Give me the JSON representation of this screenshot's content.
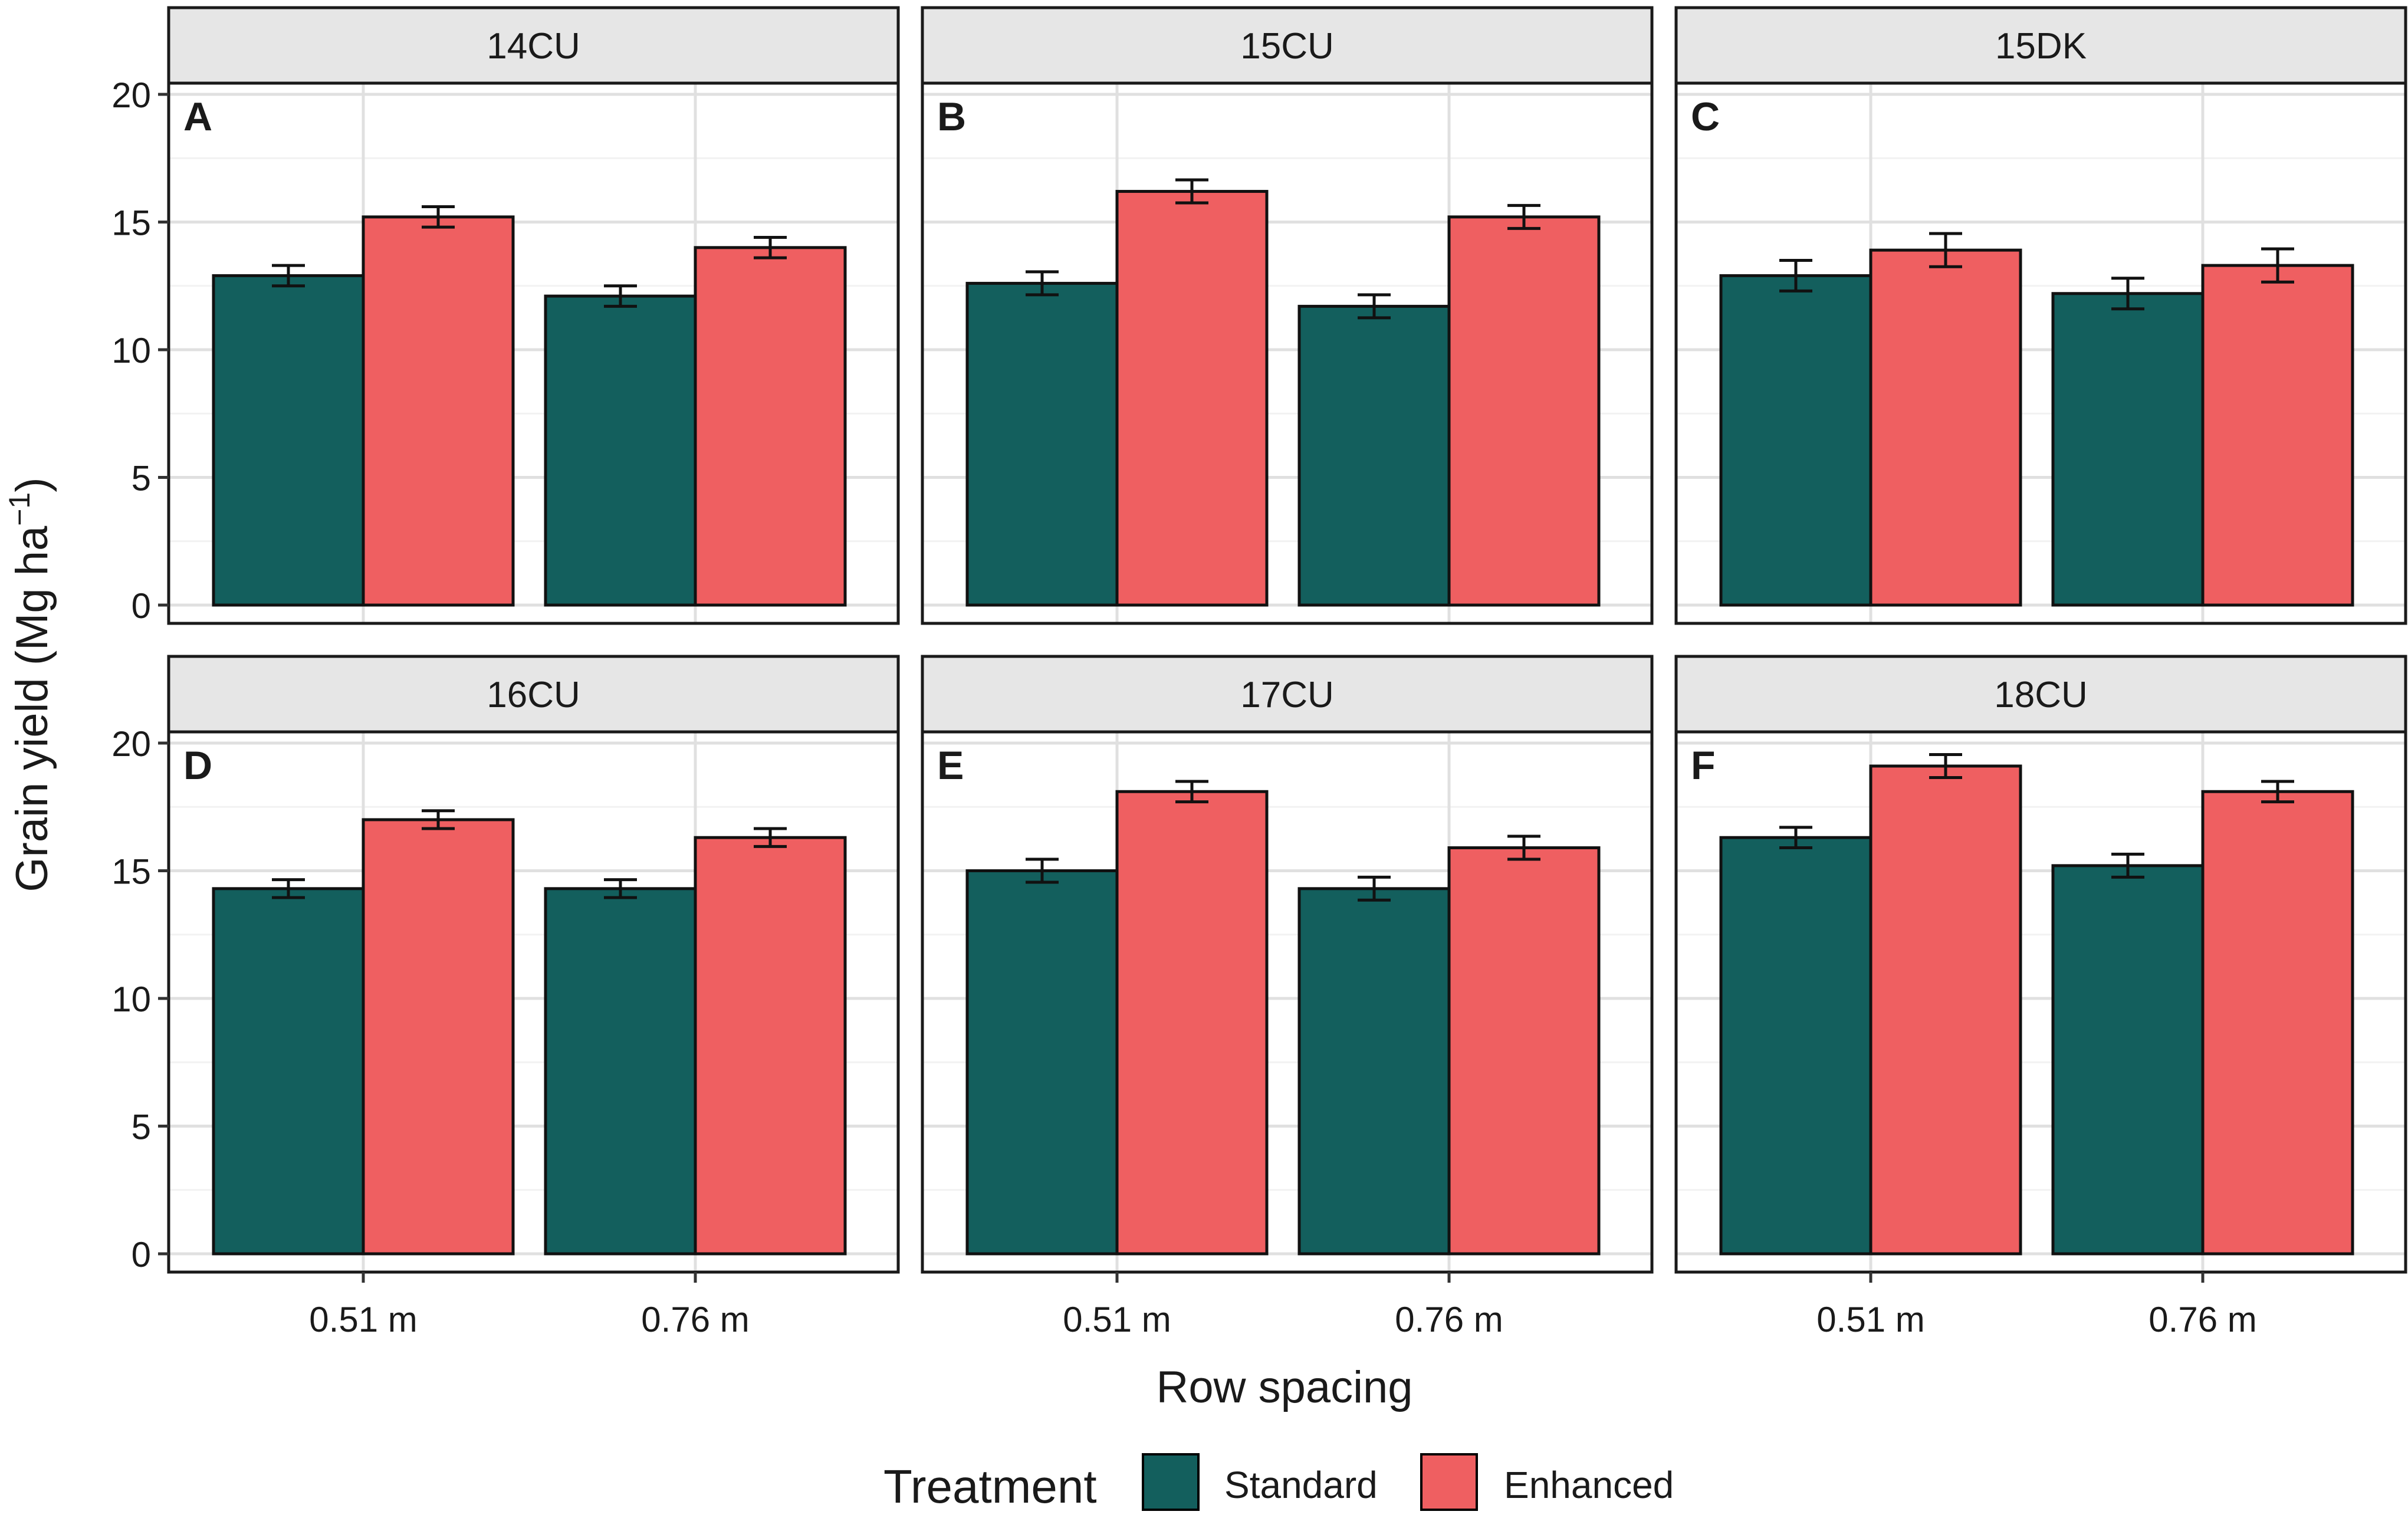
{
  "chart_data": {
    "type": "bar",
    "ylabel": "Grain yield (Mg ha",
    "ylabel_superscript": "−1",
    "ylabel_close": ")",
    "xlabel": "Row spacing",
    "ylim": [
      0,
      20
    ],
    "yticks": [
      0,
      5,
      10,
      15,
      20
    ],
    "categories": [
      "0.51 m",
      "0.76 m"
    ],
    "legend": {
      "title": "Treatment",
      "position": "bottom",
      "items": [
        {
          "name": "Standard",
          "color": "#135f5d"
        },
        {
          "name": "Enhanced",
          "color": "#ef5f61"
        }
      ]
    },
    "panels": [
      {
        "strip": "14CU",
        "tag": "A",
        "series": [
          {
            "name": "Standard",
            "values": [
              12.9,
              12.1
            ],
            "errors": [
              0.4,
              0.4
            ]
          },
          {
            "name": "Enhanced",
            "values": [
              15.2,
              14.0
            ],
            "errors": [
              0.4,
              0.4
            ]
          }
        ]
      },
      {
        "strip": "15CU",
        "tag": "B",
        "series": [
          {
            "name": "Standard",
            "values": [
              12.6,
              11.7
            ],
            "errors": [
              0.45,
              0.45
            ]
          },
          {
            "name": "Enhanced",
            "values": [
              16.2,
              15.2
            ],
            "errors": [
              0.45,
              0.45
            ]
          }
        ]
      },
      {
        "strip": "15DK",
        "tag": "C",
        "series": [
          {
            "name": "Standard",
            "values": [
              12.9,
              12.2
            ],
            "errors": [
              0.6,
              0.6
            ]
          },
          {
            "name": "Enhanced",
            "values": [
              13.9,
              13.3
            ],
            "errors": [
              0.65,
              0.65
            ]
          }
        ]
      },
      {
        "strip": "16CU",
        "tag": "D",
        "series": [
          {
            "name": "Standard",
            "values": [
              14.3,
              14.3
            ],
            "errors": [
              0.35,
              0.35
            ]
          },
          {
            "name": "Enhanced",
            "values": [
              17.0,
              16.3
            ],
            "errors": [
              0.35,
              0.35
            ]
          }
        ]
      },
      {
        "strip": "17CU",
        "tag": "E",
        "series": [
          {
            "name": "Standard",
            "values": [
              15.0,
              14.3
            ],
            "errors": [
              0.45,
              0.45
            ]
          },
          {
            "name": "Enhanced",
            "values": [
              18.1,
              15.9
            ],
            "errors": [
              0.4,
              0.45
            ]
          }
        ]
      },
      {
        "strip": "18CU",
        "tag": "F",
        "series": [
          {
            "name": "Standard",
            "values": [
              16.3,
              15.2
            ],
            "errors": [
              0.4,
              0.45
            ]
          },
          {
            "name": "Enhanced",
            "values": [
              19.1,
              18.1
            ],
            "errors": [
              0.45,
              0.4
            ]
          }
        ]
      }
    ]
  }
}
